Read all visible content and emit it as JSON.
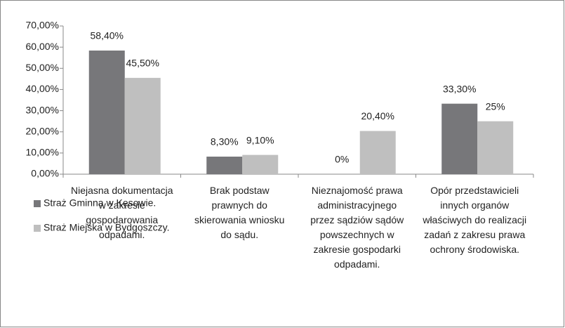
{
  "chart_data": {
    "type": "bar",
    "categories": [
      "Niejasna dokumentacja\nw zakresie\ngospodarowania\nodpadami.",
      "Brak podstaw\nprawnych do\nskierowania wniosku\ndo sądu.",
      "Nieznajomość prawa\nadministracyjnego\nprzez sądziów sądów\npowszechnych w\nzakresie gospodarki\nodpadami.",
      "Opór przedstawicieli\ninnych organów\nwłaściwych do realizacji\nzadań z zakresu prawa\nochrony środowiska."
    ],
    "series": [
      {
        "name": "Straż Gminna w Kęsowie.",
        "color": "#77777a",
        "values": [
          58.4,
          8.3,
          0,
          33.3
        ],
        "value_labels": [
          "58,40%",
          "8,30%",
          "0%",
          "33,30%"
        ]
      },
      {
        "name": "Straż Miejska w Bydgoszczy.",
        "color": "#bfbfbf",
        "values": [
          45.5,
          9.1,
          20.4,
          25
        ],
        "value_labels": [
          "45,50%",
          "9,10%",
          "20,40%",
          "25%"
        ]
      }
    ],
    "ylim": [
      0,
      70
    ],
    "yticks": [
      {
        "value": 0,
        "label": "0,00%"
      },
      {
        "value": 10,
        "label": "10,00%"
      },
      {
        "value": 20,
        "label": "20,00%"
      },
      {
        "value": 30,
        "label": "30,00%"
      },
      {
        "value": 40,
        "label": "40,00%"
      },
      {
        "value": 50,
        "label": "50,00%"
      },
      {
        "value": 60,
        "label": "60,00%"
      },
      {
        "value": 70,
        "label": "70,00%"
      }
    ],
    "legend": "bottom-left",
    "grid": false
  }
}
